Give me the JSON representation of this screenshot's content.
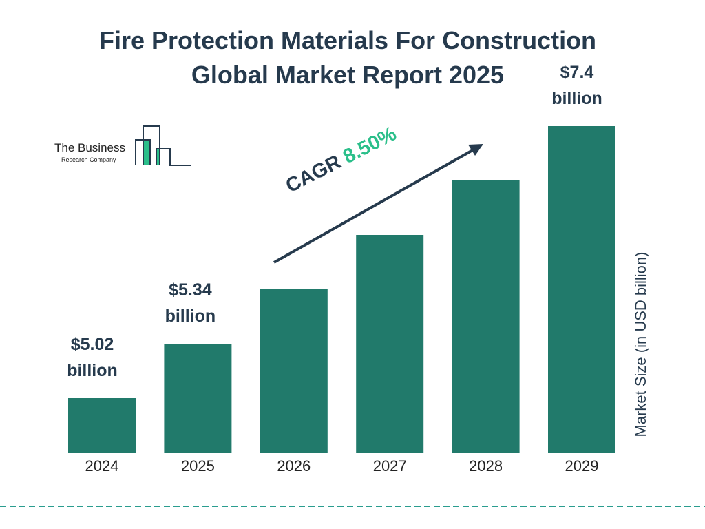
{
  "title_line1": "Fire Protection Materials For Construction",
  "title_line2": "Global Market Report 2025",
  "logo": {
    "line1": "The Business",
    "line2": "Research Company"
  },
  "cagr": {
    "label": "CAGR",
    "value": "8.50%"
  },
  "colors": {
    "bar": "#217a6b",
    "title": "#263a4d",
    "cagr_value": "#2bbf8a",
    "divider": "#2a9d8f"
  },
  "chart_data": {
    "type": "bar",
    "categories": [
      "2024",
      "2025",
      "2026",
      "2027",
      "2028",
      "2029"
    ],
    "values": [
      5.02,
      5.34,
      null,
      null,
      null,
      7.4
    ],
    "data_labels": [
      {
        "index": 0,
        "value": "$5.02",
        "unit": "billion"
      },
      {
        "index": 1,
        "value": "$5.34",
        "unit": "billion"
      },
      {
        "index": 5,
        "value": "$7.4",
        "unit": "billion"
      }
    ],
    "ylabel": "Market Size (in USD billion)",
    "xlabel": "",
    "grid": false
  }
}
